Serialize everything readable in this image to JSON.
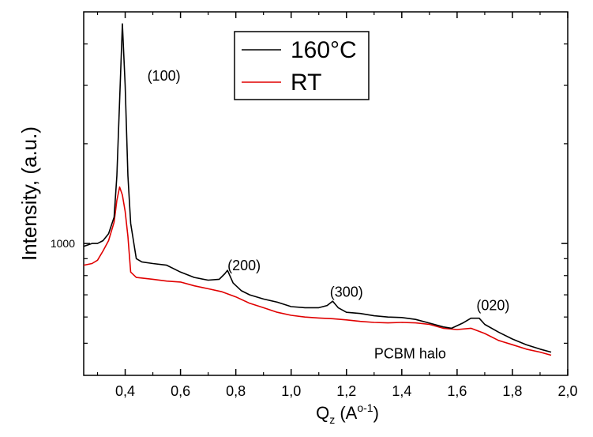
{
  "chart_data": {
    "type": "line",
    "title": "",
    "xlabel": {
      "main": "Q",
      "sub": "z",
      "open": " (A",
      "sup": "o-1",
      "close": ")"
    },
    "ylabel": "Intensity, (a.u.)",
    "xlim": [
      0.25,
      2.0
    ],
    "ylim": [
      400,
      5000
    ],
    "yscale": "log",
    "x_ticks": [
      0.4,
      0.6,
      0.8,
      1.0,
      1.2,
      1.4,
      1.6,
      1.8,
      2.0
    ],
    "x_tick_labels": [
      "0,4",
      "0,6",
      "0,8",
      "1,0",
      "1,2",
      "1,4",
      "1,6",
      "1,8",
      "2,0"
    ],
    "y_labeled_ticks": [
      1000
    ],
    "y_tick_labels": [
      "1000"
    ],
    "y_minor_ticks": [
      500,
      600,
      700,
      800,
      900,
      2000,
      3000,
      4000
    ],
    "legend": {
      "position": "top",
      "entries": [
        {
          "name": "160°C",
          "color": "#000000"
        },
        {
          "name": "RT",
          "color": "#e00000"
        }
      ]
    },
    "annotations": [
      {
        "text": "(100)",
        "x": 0.54,
        "y": 3100
      },
      {
        "text": "(200)",
        "x": 0.83,
        "y": 830
      },
      {
        "text": "(300)",
        "x": 1.2,
        "y": 690
      },
      {
        "text": "(020)",
        "x": 1.73,
        "y": 630
      },
      {
        "text": "PCBM halo",
        "x": 1.43,
        "y": 450
      }
    ],
    "series": [
      {
        "name": "160°C",
        "color": "#000000",
        "points": [
          [
            0.25,
            980
          ],
          [
            0.28,
            1000
          ],
          [
            0.3,
            1000
          ],
          [
            0.32,
            1020
          ],
          [
            0.34,
            1070
          ],
          [
            0.36,
            1200
          ],
          [
            0.37,
            1600
          ],
          [
            0.38,
            2700
          ],
          [
            0.39,
            4600
          ],
          [
            0.4,
            3000
          ],
          [
            0.41,
            1600
          ],
          [
            0.42,
            1150
          ],
          [
            0.44,
            900
          ],
          [
            0.46,
            880
          ],
          [
            0.5,
            870
          ],
          [
            0.55,
            860
          ],
          [
            0.6,
            820
          ],
          [
            0.65,
            790
          ],
          [
            0.7,
            775
          ],
          [
            0.74,
            780
          ],
          [
            0.76,
            810
          ],
          [
            0.77,
            830
          ],
          [
            0.79,
            760
          ],
          [
            0.82,
            720
          ],
          [
            0.85,
            700
          ],
          [
            0.9,
            680
          ],
          [
            0.95,
            665
          ],
          [
            1.0,
            645
          ],
          [
            1.05,
            640
          ],
          [
            1.1,
            640
          ],
          [
            1.13,
            650
          ],
          [
            1.15,
            670
          ],
          [
            1.17,
            640
          ],
          [
            1.2,
            620
          ],
          [
            1.25,
            615
          ],
          [
            1.3,
            605
          ],
          [
            1.35,
            600
          ],
          [
            1.4,
            598
          ],
          [
            1.45,
            590
          ],
          [
            1.5,
            575
          ],
          [
            1.55,
            560
          ],
          [
            1.58,
            555
          ],
          [
            1.62,
            575
          ],
          [
            1.65,
            595
          ],
          [
            1.68,
            595
          ],
          [
            1.7,
            570
          ],
          [
            1.75,
            540
          ],
          [
            1.8,
            515
          ],
          [
            1.85,
            495
          ],
          [
            1.9,
            480
          ],
          [
            1.94,
            470
          ]
        ]
      },
      {
        "name": "RT",
        "color": "#e00000",
        "points": [
          [
            0.25,
            860
          ],
          [
            0.28,
            870
          ],
          [
            0.3,
            890
          ],
          [
            0.32,
            950
          ],
          [
            0.34,
            1020
          ],
          [
            0.36,
            1160
          ],
          [
            0.37,
            1350
          ],
          [
            0.38,
            1480
          ],
          [
            0.39,
            1400
          ],
          [
            0.4,
            1250
          ],
          [
            0.41,
            1050
          ],
          [
            0.42,
            820
          ],
          [
            0.44,
            790
          ],
          [
            0.5,
            780
          ],
          [
            0.55,
            770
          ],
          [
            0.6,
            765
          ],
          [
            0.65,
            745
          ],
          [
            0.7,
            730
          ],
          [
            0.75,
            715
          ],
          [
            0.8,
            690
          ],
          [
            0.85,
            660
          ],
          [
            0.9,
            640
          ],
          [
            0.95,
            620
          ],
          [
            1.0,
            607
          ],
          [
            1.05,
            600
          ],
          [
            1.1,
            596
          ],
          [
            1.15,
            593
          ],
          [
            1.2,
            588
          ],
          [
            1.25,
            582
          ],
          [
            1.3,
            578
          ],
          [
            1.35,
            576
          ],
          [
            1.4,
            578
          ],
          [
            1.45,
            576
          ],
          [
            1.5,
            570
          ],
          [
            1.55,
            555
          ],
          [
            1.6,
            550
          ],
          [
            1.65,
            555
          ],
          [
            1.7,
            535
          ],
          [
            1.75,
            510
          ],
          [
            1.8,
            495
          ],
          [
            1.85,
            480
          ],
          [
            1.9,
            470
          ],
          [
            1.94,
            460
          ]
        ]
      }
    ]
  }
}
